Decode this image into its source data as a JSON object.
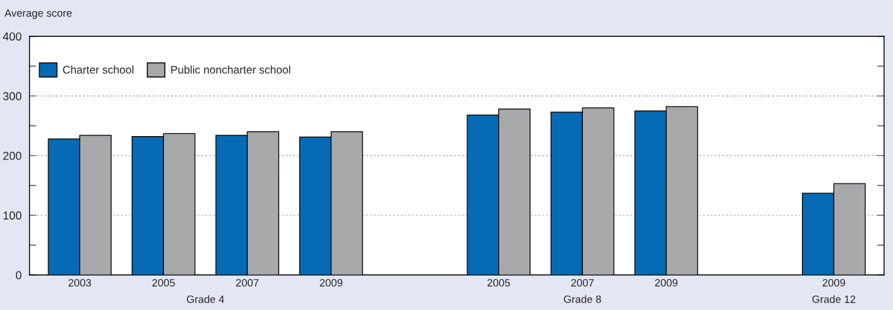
{
  "chart_data": {
    "type": "bar",
    "ylabel": "Average score",
    "categories": [
      "2003",
      "2005",
      "2007",
      "2009",
      null,
      "2005",
      "2007",
      "2009",
      null,
      "2009"
    ],
    "series": [
      {
        "name": "Charter school",
        "color": "#066bb4",
        "values": [
          228,
          232,
          234,
          231,
          null,
          268,
          273,
          275,
          null,
          137
        ]
      },
      {
        "name": "Public noncharter school",
        "color": "#a8a9ab",
        "values": [
          234,
          237,
          240,
          240,
          null,
          278,
          280,
          282,
          null,
          153
        ]
      }
    ],
    "annotations": [
      "Grade 4",
      "Grade 8",
      "Grade 12"
    ],
    "ylim": [
      0,
      400
    ],
    "yticks": [
      0,
      {
        "value": 50,
        "label": null
      },
      100,
      {
        "value": 150,
        "label": null
      },
      200,
      {
        "value": 250,
        "label": null
      },
      300,
      {
        "value": 350,
        "label": null
      },
      400
    ],
    "grid": "y",
    "legend": "top left"
  }
}
